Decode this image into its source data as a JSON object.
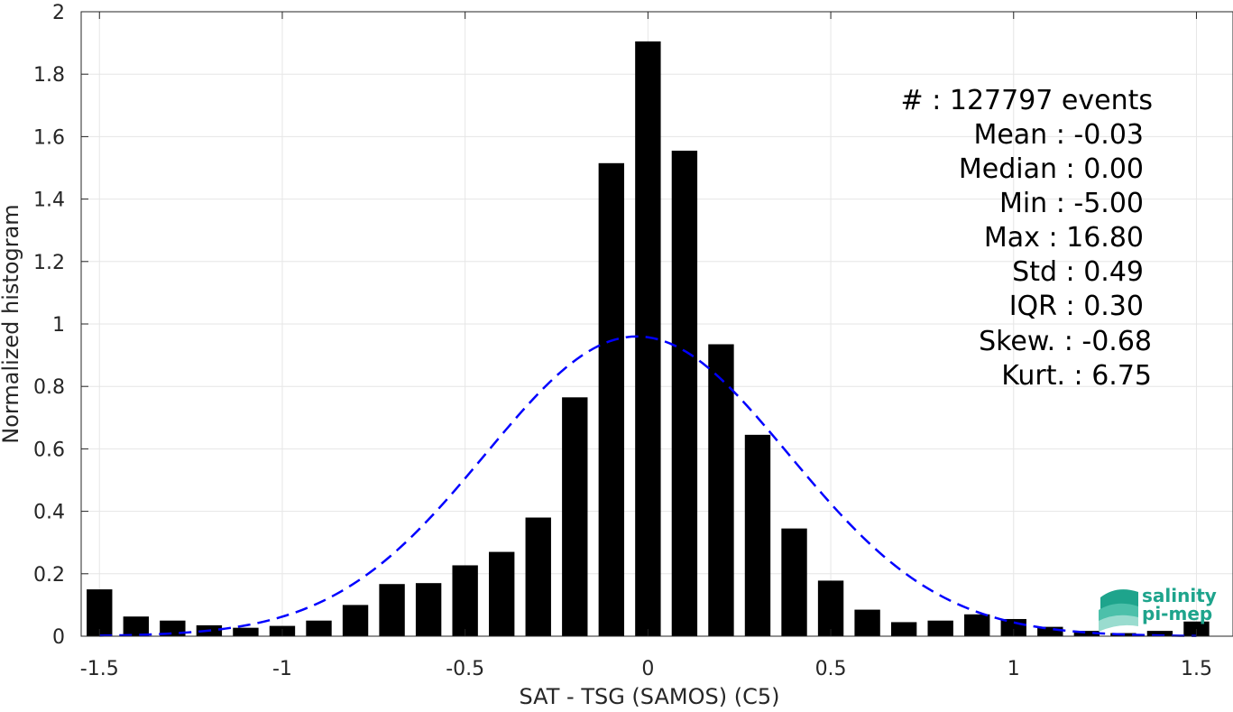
{
  "chart_data": {
    "type": "bar",
    "xlabel": "SAT - TSG (SAMOS) (C5)",
    "ylabel": "Normalized histogram",
    "xlim": [
      -1.55,
      1.6
    ],
    "ylim": [
      0,
      2
    ],
    "xticks": [
      -1.5,
      -1,
      -0.5,
      0,
      0.5,
      1,
      1.5
    ],
    "xtick_labels": [
      "-1.5",
      "-1",
      "-0.5",
      "0",
      "0.5",
      "1",
      "1.5"
    ],
    "yticks": [
      0,
      0.2,
      0.4,
      0.6,
      0.8,
      1,
      1.2,
      1.4,
      1.6,
      1.8,
      2
    ],
    "ytick_labels": [
      "0",
      "0.2",
      "0.4",
      "0.6",
      "0.8",
      "1",
      "1.2",
      "1.4",
      "1.6",
      "1.8",
      "2"
    ],
    "grid": true,
    "bar_width": 0.07,
    "bins": [
      -1.5,
      -1.4,
      -1.3,
      -1.2,
      -1.1,
      -1.0,
      -0.9,
      -0.8,
      -0.7,
      -0.6,
      -0.5,
      -0.4,
      -0.3,
      -0.2,
      -0.1,
      0.0,
      0.1,
      0.2,
      0.3,
      0.4,
      0.5,
      0.6,
      0.7,
      0.8,
      0.9,
      1.0,
      1.1,
      1.2,
      1.3,
      1.4,
      1.5
    ],
    "values": [
      0.15,
      0.063,
      0.05,
      0.035,
      0.027,
      0.033,
      0.05,
      0.1,
      0.167,
      0.17,
      0.227,
      0.27,
      0.38,
      0.765,
      1.515,
      1.905,
      1.555,
      0.935,
      0.645,
      0.345,
      0.178,
      0.085,
      0.045,
      0.05,
      0.07,
      0.055,
      0.03,
      0.017,
      0.01,
      0.017,
      0.047
    ],
    "fit": {
      "type": "gaussian",
      "mean": -0.03,
      "std": 0.415,
      "peak": 0.96,
      "style": "dashed",
      "color": "#0000ff"
    },
    "annotations": [
      "#  : 127797 events",
      "Mean : -0.03",
      "Median : 0.00",
      "Min : -5.00",
      "Max : 16.80",
      "Std : 0.49",
      "IQR : 0.30",
      "Skew. : -0.68",
      "Kurt. : 6.75"
    ]
  },
  "logo": {
    "line1": "salinity",
    "line2": "pi-mep",
    "color": "#1ea48c"
  }
}
